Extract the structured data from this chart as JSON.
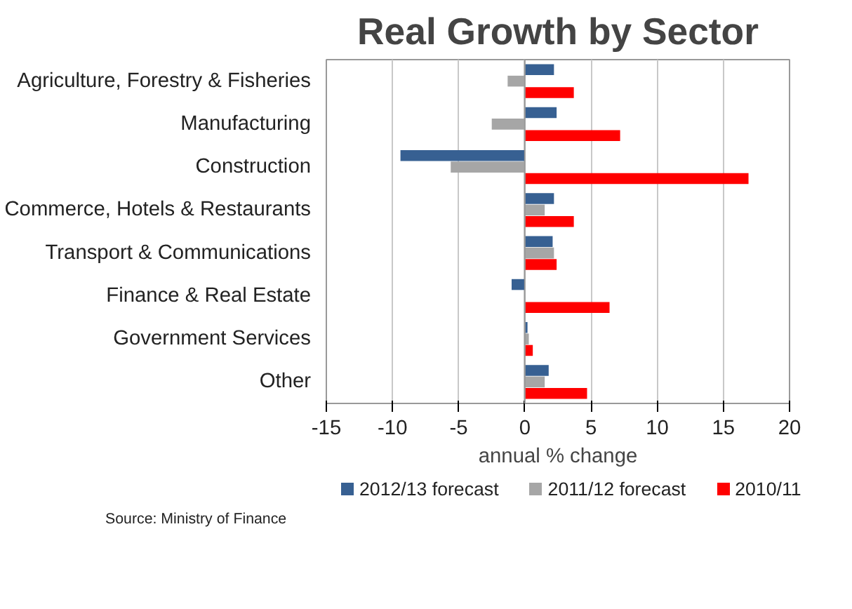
{
  "chart_data": {
    "type": "bar",
    "orientation": "horizontal",
    "title": "Real Growth by Sector",
    "xlabel": "annual % change",
    "categories": [
      "Agriculture, Forestry & Fisheries",
      "Manufacturing",
      "Construction",
      "Commerce, Hotels & Restaurants",
      "Transport & Communications",
      "Finance & Real Estate",
      "Government Services",
      "Other"
    ],
    "series": [
      {
        "name": "2012/13 forecast",
        "color": "#376092",
        "values": [
          2.2,
          2.4,
          -9.4,
          2.2,
          2.1,
          -1.0,
          0.2,
          1.8
        ]
      },
      {
        "name": "2011/12 forecast",
        "color": "#a6a6a6",
        "values": [
          -1.3,
          -2.5,
          -5.6,
          1.5,
          2.2,
          0,
          0.3,
          1.5
        ]
      },
      {
        "name": "2010/11",
        "color": "#ff0000",
        "values": [
          3.7,
          7.2,
          16.9,
          3.7,
          2.4,
          6.4,
          0.6,
          4.7
        ]
      }
    ],
    "xlim": [
      -15,
      20
    ],
    "xticks": [
      -15,
      -10,
      -5,
      0,
      5,
      10,
      15,
      20
    ],
    "grid": "x",
    "legend": "bottom",
    "annotations": [
      "Source: Ministry of Finance"
    ]
  }
}
